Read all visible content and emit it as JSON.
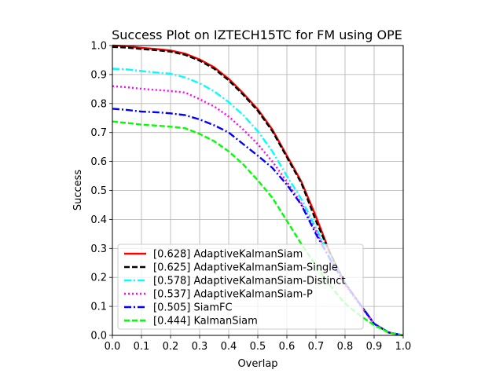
{
  "chart_data": {
    "type": "line",
    "title": "Success Plot on IZTECH15TC for FM using OPE",
    "xlabel": "Overlap",
    "ylabel": "Success",
    "xlim": [
      0,
      1
    ],
    "ylim": [
      0,
      1
    ],
    "x_ticks": [
      "0.0",
      "0.1",
      "0.2",
      "0.3",
      "0.4",
      "0.5",
      "0.6",
      "0.7",
      "0.8",
      "0.9",
      "1.0"
    ],
    "y_ticks": [
      "0.0",
      "0.1",
      "0.2",
      "0.3",
      "0.4",
      "0.5",
      "0.6",
      "0.7",
      "0.8",
      "0.9",
      "1.0"
    ],
    "grid": true,
    "legend_position": "lower-left",
    "x": [
      0,
      0.05,
      0.1,
      0.15,
      0.2,
      0.25,
      0.3,
      0.35,
      0.4,
      0.45,
      0.5,
      0.55,
      0.6,
      0.65,
      0.7,
      0.75,
      0.8,
      0.85,
      0.9,
      0.95,
      1.0
    ],
    "series": [
      {
        "name": "[0.628] AdaptiveKalmanSiam",
        "color": "#ff0000",
        "dash": "solid",
        "values": [
          1.0,
          0.998,
          0.992,
          0.988,
          0.983,
          0.972,
          0.952,
          0.925,
          0.885,
          0.835,
          0.78,
          0.71,
          0.62,
          0.53,
          0.41,
          0.28,
          0.18,
          0.11,
          0.04,
          0.01,
          0.0
        ]
      },
      {
        "name": "[0.625] AdaptiveKalmanSiam-Single",
        "color": "#000000",
        "dash": "dashed",
        "values": [
          0.995,
          0.993,
          0.988,
          0.984,
          0.979,
          0.968,
          0.948,
          0.92,
          0.88,
          0.83,
          0.775,
          0.705,
          0.615,
          0.525,
          0.395,
          0.28,
          0.18,
          0.11,
          0.04,
          0.01,
          0.0
        ]
      },
      {
        "name": "[0.578] AdaptiveKalmanSiam-Distinct",
        "color": "#00ffff",
        "dash": "dashdot",
        "values": [
          0.92,
          0.918,
          0.912,
          0.907,
          0.903,
          0.89,
          0.87,
          0.842,
          0.805,
          0.76,
          0.705,
          0.635,
          0.55,
          0.47,
          0.37,
          0.27,
          0.18,
          0.11,
          0.04,
          0.01,
          0.0
        ]
      },
      {
        "name": "[0.537] AdaptiveKalmanSiam-P",
        "color": "#ff00ff",
        "dash": "dotted",
        "values": [
          0.86,
          0.856,
          0.851,
          0.847,
          0.843,
          0.838,
          0.815,
          0.79,
          0.755,
          0.71,
          0.66,
          0.6,
          0.53,
          0.455,
          0.36,
          0.26,
          0.175,
          0.105,
          0.04,
          0.01,
          0.0
        ]
      },
      {
        "name": "[0.505] SiamFC",
        "color": "#0000ff",
        "dash": "dashdot",
        "values": [
          0.782,
          0.778,
          0.772,
          0.77,
          0.766,
          0.76,
          0.745,
          0.725,
          0.7,
          0.66,
          0.62,
          0.578,
          0.52,
          0.45,
          0.35,
          0.26,
          0.18,
          0.11,
          0.04,
          0.01,
          0.0
        ]
      },
      {
        "name": "[0.444] KalmanSiam",
        "color": "#00ff00",
        "dash": "dashed",
        "values": [
          0.738,
          0.733,
          0.727,
          0.724,
          0.72,
          0.715,
          0.695,
          0.67,
          0.635,
          0.59,
          0.535,
          0.475,
          0.395,
          0.315,
          0.24,
          0.17,
          0.11,
          0.07,
          0.035,
          0.01,
          0.0
        ]
      }
    ]
  }
}
